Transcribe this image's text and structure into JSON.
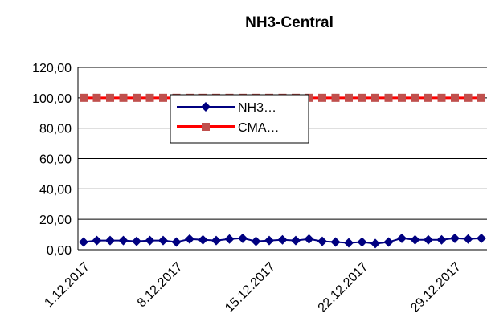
{
  "chart_data": {
    "type": "line",
    "title": "NH3-Central",
    "categories": [
      "1.12.2017",
      null,
      null,
      null,
      null,
      null,
      null,
      "8.12.2017",
      null,
      null,
      null,
      null,
      null,
      null,
      "15.12.2017",
      null,
      null,
      null,
      null,
      null,
      null,
      "22.12.2017",
      null,
      null,
      null,
      null,
      null,
      null,
      "29.12.2017",
      null,
      null
    ],
    "series": [
      {
        "name": "NH3…",
        "color": "#000080",
        "marker": "diamond",
        "values": [
          5,
          6,
          6,
          6,
          5.5,
          6,
          6,
          5,
          7,
          6.5,
          6,
          7,
          7.5,
          5.5,
          6,
          6.5,
          6,
          7,
          5.5,
          5,
          4.5,
          5,
          4,
          5,
          7.5,
          6.5,
          6.5,
          6.5,
          7.5,
          7,
          7.5
        ]
      },
      {
        "name": "CMA…",
        "color": "#ff0000",
        "marker_color": "#c0504d",
        "marker": "square",
        "values": [
          100,
          100,
          100,
          100,
          100,
          100,
          100,
          100,
          100,
          100,
          100,
          100,
          100,
          100,
          100,
          100,
          100,
          100,
          100,
          100,
          100,
          100,
          100,
          100,
          100,
          100,
          100,
          100,
          100,
          100,
          100
        ]
      }
    ],
    "ylim": [
      0,
      120
    ],
    "yticks": [
      {
        "value": 0,
        "label": "0,00"
      },
      {
        "value": 20,
        "label": "20,00"
      },
      {
        "value": 40,
        "label": "40,00"
      },
      {
        "value": 60,
        "label": "60,00"
      },
      {
        "value": 80,
        "label": "80,00"
      },
      {
        "value": 100,
        "label": "100,00"
      },
      {
        "value": 120,
        "label": "120,00"
      }
    ],
    "grid": true,
    "legend": "top-left"
  }
}
